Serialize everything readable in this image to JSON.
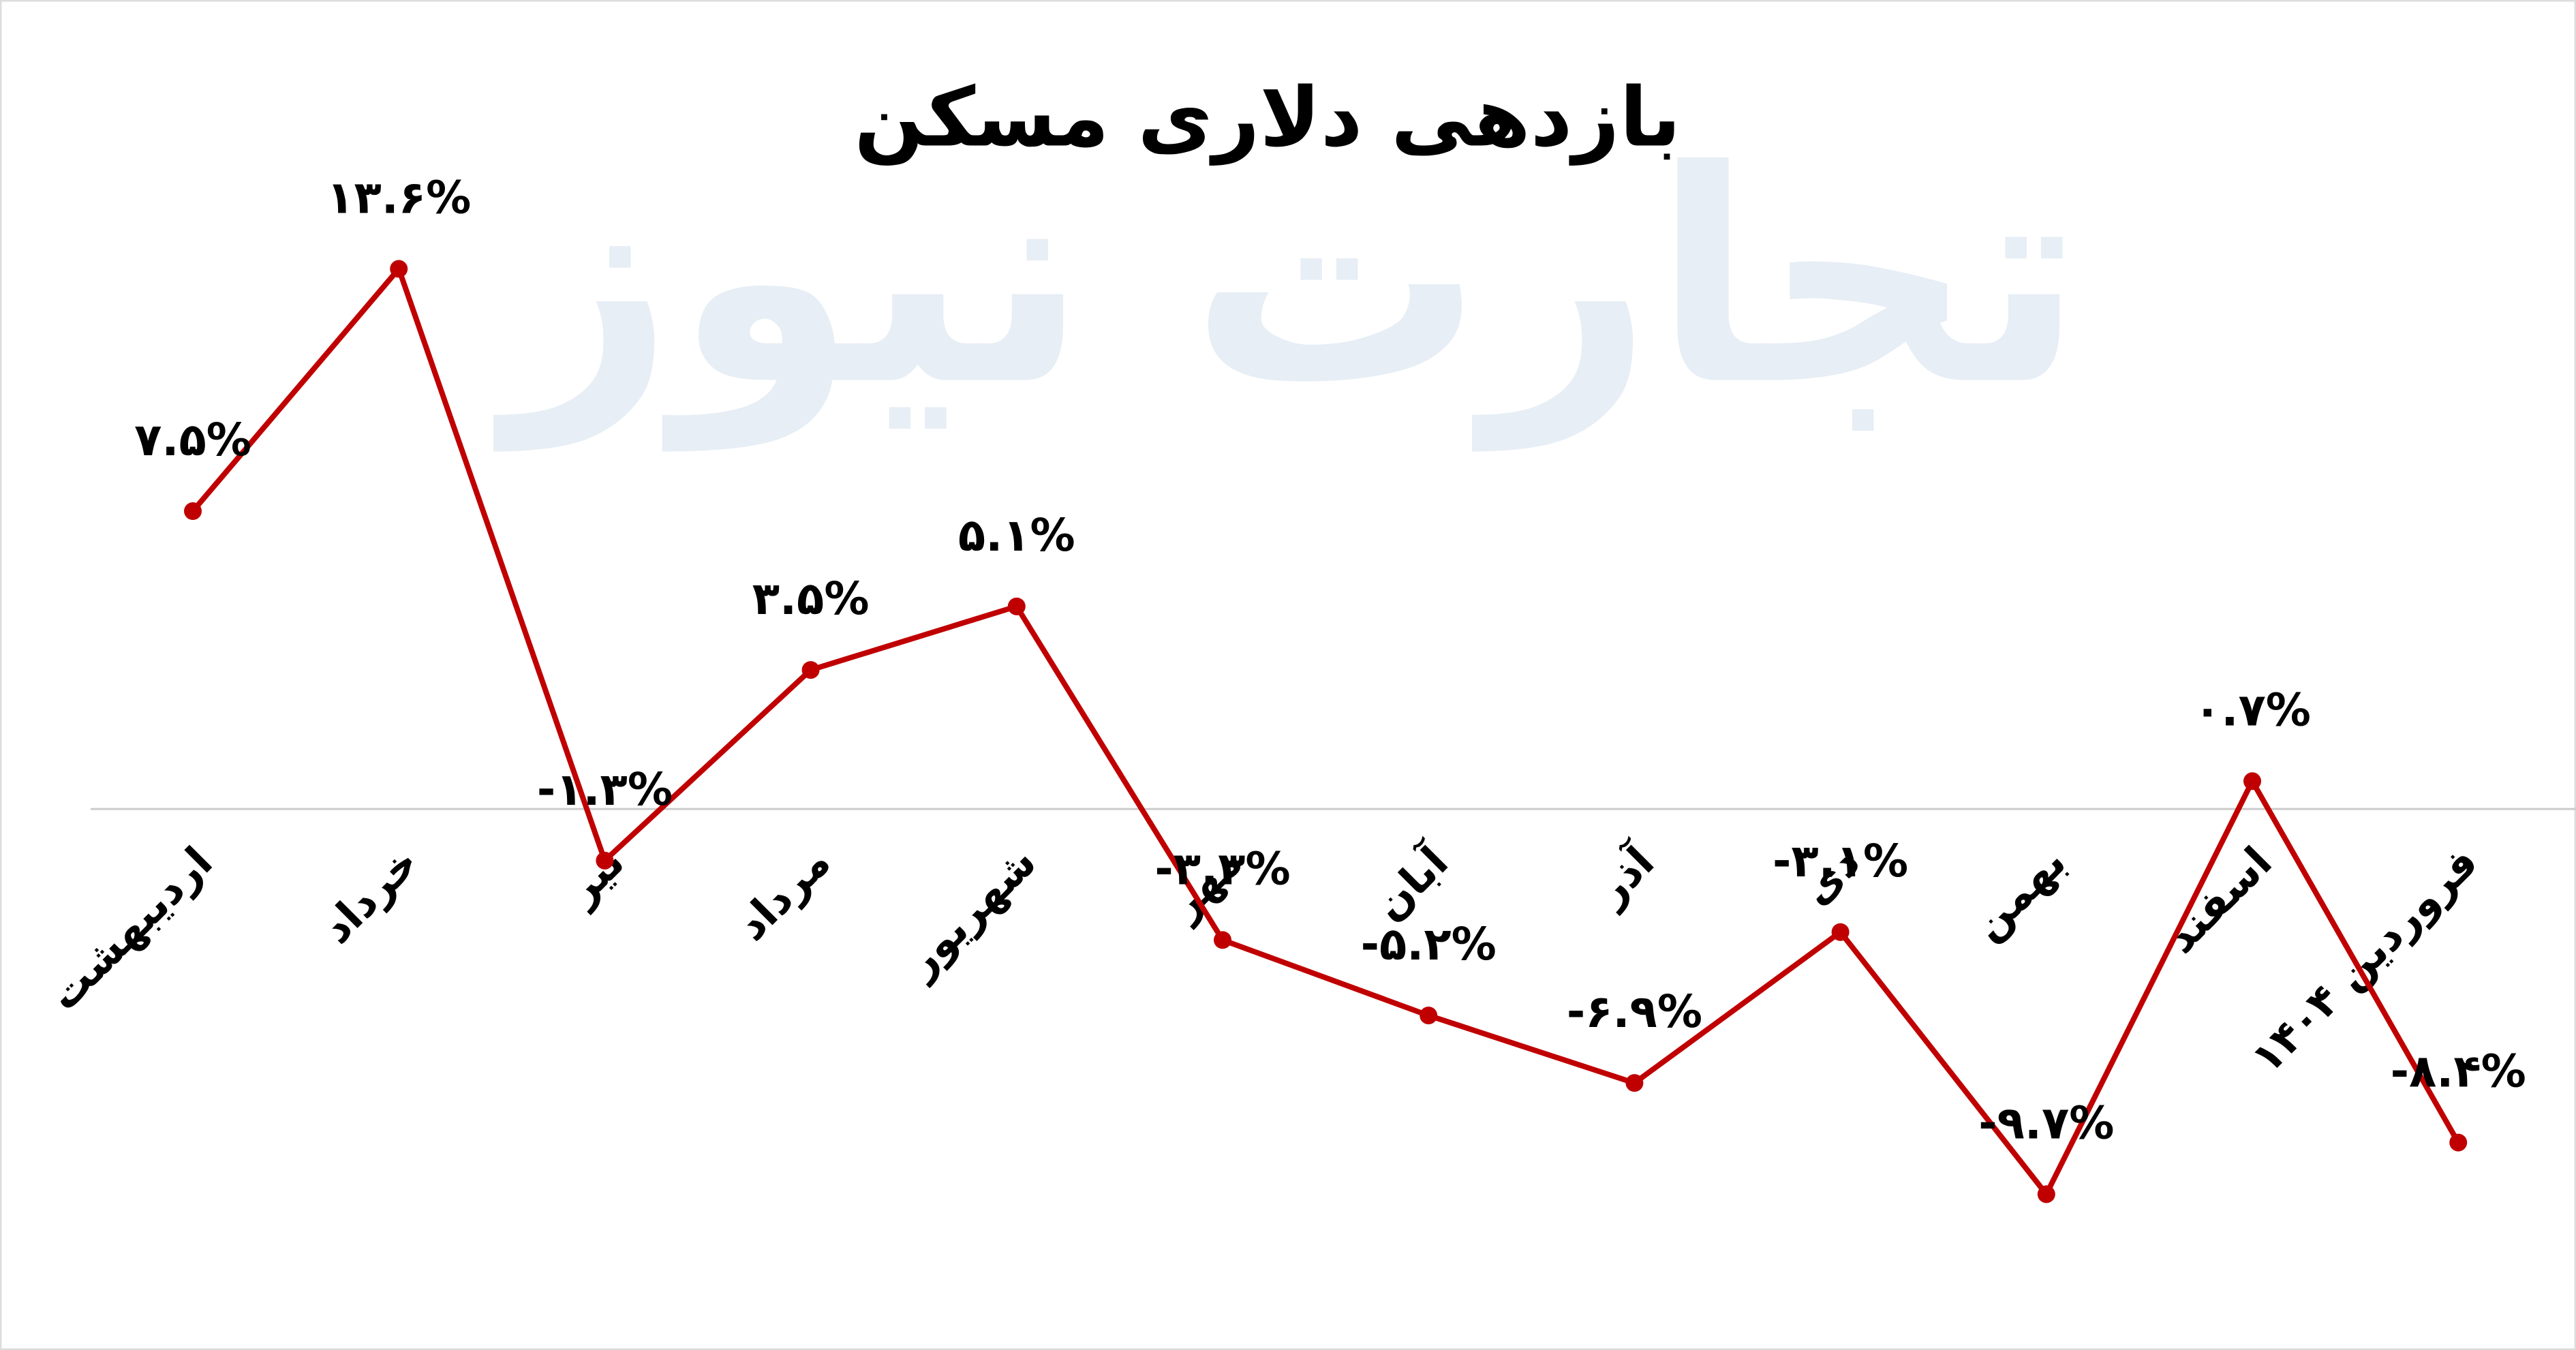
{
  "chart_data": {
    "type": "line",
    "title": "بازدهی دلاری مسکن",
    "watermark": "تجارت نیوز",
    "categories": [
      "اردیبهشت",
      "خرداد",
      "تیر",
      "مرداد",
      "شهریور",
      "مهر",
      "آبان",
      "آذر",
      "دی",
      "بهمن",
      "اسفند",
      "فروردین ۱۴۰۴"
    ],
    "series": [
      {
        "name": "بازدهی دلاری مسکن",
        "color": "#c00000",
        "values": [
          7.5,
          13.6,
          -1.3,
          3.5,
          5.1,
          -3.3,
          -5.2,
          -6.9,
          -3.1,
          -9.7,
          0.7,
          -8.4
        ],
        "value_labels": [
          "۷.۵%",
          "۱۳.۶%",
          "-۱.۳%",
          "۳.۵%",
          "۵.۱%",
          "-۳.۳%",
          "-۵.۲%",
          "-۶.۹%",
          "-۳.۱%",
          "-۹.۷%",
          "۰.۷%",
          "-۸.۴%"
        ]
      }
    ],
    "ylim": [
      -12.8,
      16.2
    ],
    "zero_line": true
  }
}
